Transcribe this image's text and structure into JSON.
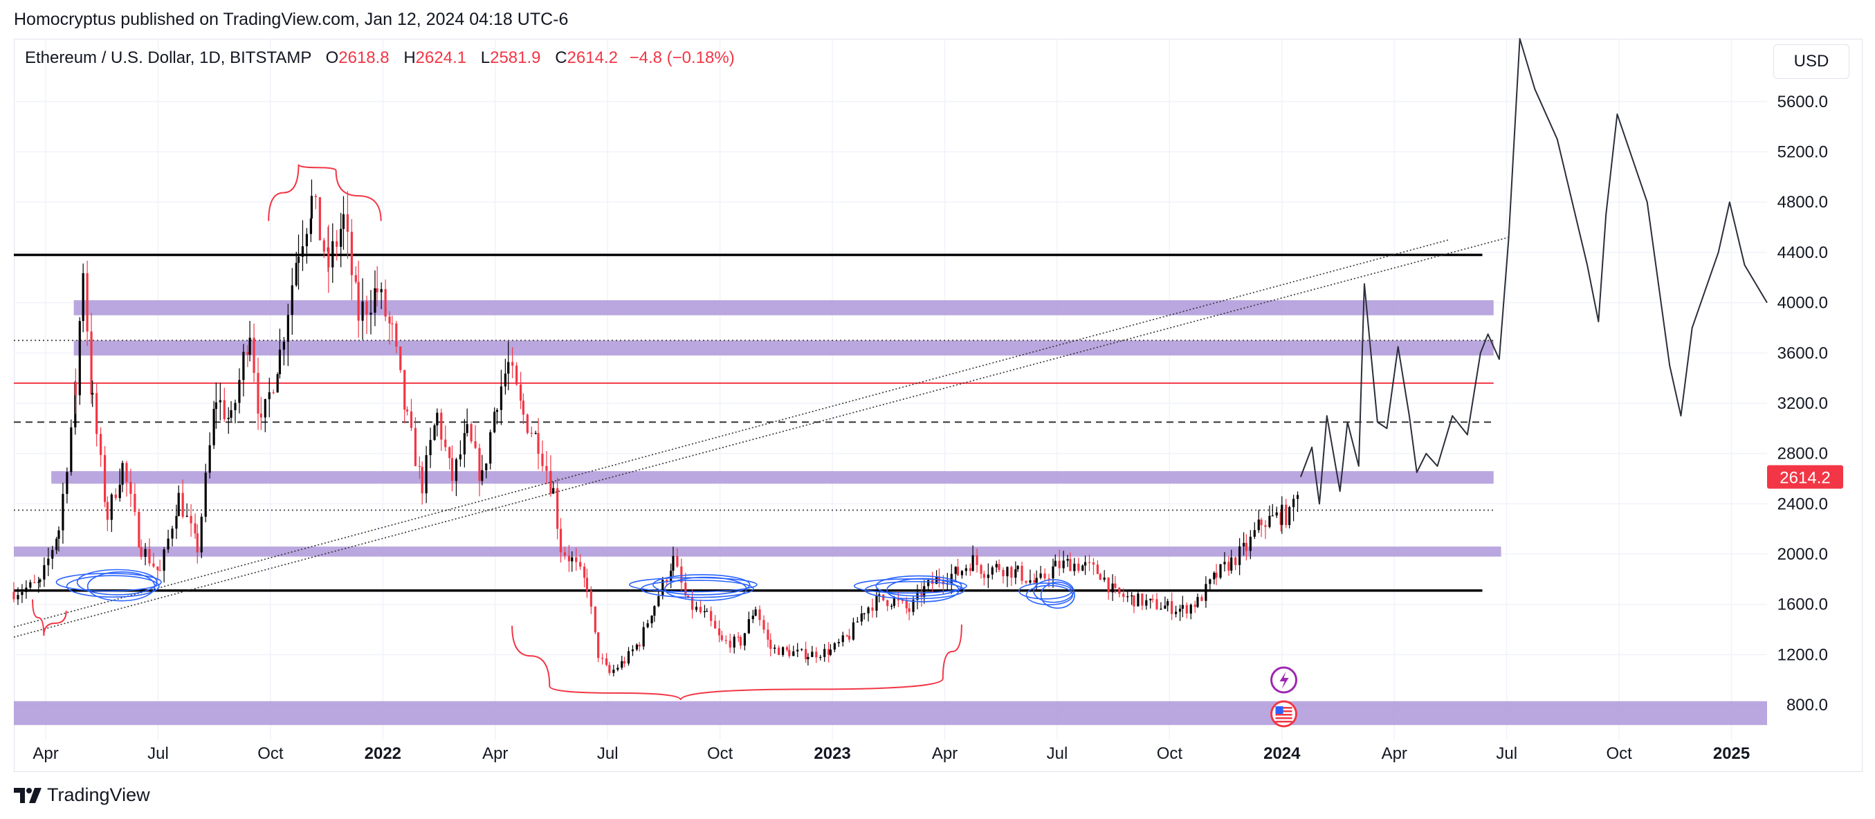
{
  "header": {
    "published": "Homocryptus published on TradingView.com, Jan 12, 2024 04:18 UTC-6"
  },
  "legend": {
    "symbol": "Ethereum / U.S. Dollar, 1D, BITSTAMP",
    "open_label": "O",
    "open": "2618.8",
    "high_label": "H",
    "high": "2624.1",
    "low_label": "L",
    "low": "2581.9",
    "close_label": "C",
    "close": "2614.2",
    "change": "−4.8 (−0.18%)"
  },
  "currency_button": "USD",
  "brand": "TradingView",
  "colors": {
    "up": "#000000",
    "down": "#f23645",
    "zone": "#b39ddb",
    "accent": "#f23645",
    "drawing_blue": "#2962ff"
  },
  "event_icons": [
    "lightning-icon",
    "us-flag-icon"
  ],
  "chart_data": {
    "type": "line",
    "title": "Ethereum / U.S. Dollar, 1D, BITSTAMP",
    "xlabel": "",
    "ylabel": "USD",
    "ylim": [
      520,
      6100
    ],
    "y_ticks": [
      800,
      1200,
      1600,
      2000,
      2400,
      2800,
      3200,
      3600,
      4000,
      4400,
      4800,
      5200,
      5600
    ],
    "y_tick_labels": [
      "800.0",
      "1200.0",
      "1600.0",
      "2000.0",
      "2400.0",
      "2800.0",
      "3200.0",
      "3600.0",
      "4000.0",
      "4400.0",
      "4800.0",
      "5200.0",
      "5600.0"
    ],
    "x_ticks": [
      {
        "label": "Apr",
        "t": 0.55,
        "bold": false
      },
      {
        "label": "Jul",
        "t": 3.55,
        "bold": false
      },
      {
        "label": "Oct",
        "t": 6.55,
        "bold": false
      },
      {
        "label": "2022",
        "t": 9.55,
        "bold": true
      },
      {
        "label": "Apr",
        "t": 12.55,
        "bold": false
      },
      {
        "label": "Jul",
        "t": 15.55,
        "bold": false
      },
      {
        "label": "Oct",
        "t": 18.55,
        "bold": false
      },
      {
        "label": "2023",
        "t": 21.55,
        "bold": true
      },
      {
        "label": "Apr",
        "t": 24.55,
        "bold": false
      },
      {
        "label": "Jul",
        "t": 27.55,
        "bold": false
      },
      {
        "label": "Oct",
        "t": 30.55,
        "bold": false
      },
      {
        "label": "2024",
        "t": 33.55,
        "bold": true
      },
      {
        "label": "Apr",
        "t": 36.55,
        "bold": false
      },
      {
        "label": "Jul",
        "t": 39.55,
        "bold": false
      },
      {
        "label": "Oct",
        "t": 42.55,
        "bold": false
      },
      {
        "label": "2025",
        "t": 45.55,
        "bold": true
      }
    ],
    "price_series": [
      [
        -0.3,
        1700
      ],
      [
        0.4,
        1760
      ],
      [
        0.9,
        2200
      ],
      [
        1.35,
        3300
      ],
      [
        1.55,
        4300
      ],
      [
        1.8,
        3200
      ],
      [
        2.2,
        2300
      ],
      [
        2.6,
        2700
      ],
      [
        3.1,
        2050
      ],
      [
        3.6,
        1850
      ],
      [
        4.1,
        2450
      ],
      [
        4.6,
        2050
      ],
      [
        5.1,
        3250
      ],
      [
        5.5,
        3050
      ],
      [
        6.0,
        3800
      ],
      [
        6.3,
        3000
      ],
      [
        6.8,
        3600
      ],
      [
        7.3,
        4450
      ],
      [
        7.65,
        4800
      ],
      [
        8.1,
        4300
      ],
      [
        8.5,
        4650
      ],
      [
        8.9,
        3900
      ],
      [
        9.4,
        4100
      ],
      [
        9.8,
        3750
      ],
      [
        10.2,
        3050
      ],
      [
        10.6,
        2550
      ],
      [
        11.0,
        3100
      ],
      [
        11.4,
        2600
      ],
      [
        11.8,
        2950
      ],
      [
        12.2,
        2600
      ],
      [
        12.6,
        3250
      ],
      [
        12.9,
        3500
      ],
      [
        13.3,
        3100
      ],
      [
        13.7,
        2900
      ],
      [
        14.1,
        2500
      ],
      [
        14.3,
        2050
      ],
      [
        14.6,
        1950
      ],
      [
        15.0,
        1750
      ],
      [
        15.3,
        1200
      ],
      [
        15.6,
        1050
      ],
      [
        16.0,
        1150
      ],
      [
        16.4,
        1300
      ],
      [
        16.8,
        1600
      ],
      [
        17.3,
        1950
      ],
      [
        17.7,
        1600
      ],
      [
        18.2,
        1500
      ],
      [
        18.6,
        1300
      ],
      [
        19.1,
        1300
      ],
      [
        19.5,
        1580
      ],
      [
        19.9,
        1250
      ],
      [
        20.4,
        1220
      ],
      [
        20.9,
        1200
      ],
      [
        21.5,
        1230
      ],
      [
        22.0,
        1350
      ],
      [
        22.4,
        1560
      ],
      [
        22.8,
        1640
      ],
      [
        23.2,
        1630
      ],
      [
        23.6,
        1550
      ],
      [
        24.0,
        1720
      ],
      [
        24.4,
        1810
      ],
      [
        24.9,
        1850
      ],
      [
        25.3,
        1950
      ],
      [
        25.6,
        1870
      ],
      [
        26.0,
        1900
      ],
      [
        26.5,
        1850
      ],
      [
        27.0,
        1760
      ],
      [
        27.5,
        1900
      ],
      [
        27.9,
        1930
      ],
      [
        28.3,
        1900
      ],
      [
        28.7,
        1850
      ],
      [
        29.1,
        1680
      ],
      [
        29.6,
        1640
      ],
      [
        30.1,
        1600
      ],
      [
        30.5,
        1580
      ],
      [
        30.9,
        1560
      ],
      [
        31.3,
        1620
      ],
      [
        31.8,
        1830
      ],
      [
        32.2,
        1940
      ],
      [
        32.6,
        2050
      ],
      [
        33.0,
        2250
      ],
      [
        33.3,
        2280
      ],
      [
        33.55,
        2314
      ],
      [
        33.75,
        2300
      ],
      [
        34.05,
        2614
      ]
    ],
    "forecast_path": [
      [
        34.05,
        2614
      ],
      [
        34.35,
        2850
      ],
      [
        34.55,
        2400
      ],
      [
        34.75,
        3100
      ],
      [
        35.1,
        2500
      ],
      [
        35.3,
        3050
      ],
      [
        35.6,
        2700
      ],
      [
        35.75,
        4150
      ],
      [
        36.1,
        3050
      ],
      [
        36.35,
        3000
      ],
      [
        36.65,
        3650
      ],
      [
        36.95,
        3100
      ],
      [
        37.15,
        2650
      ],
      [
        37.4,
        2800
      ],
      [
        37.7,
        2700
      ],
      [
        38.1,
        3100
      ],
      [
        38.5,
        2950
      ],
      [
        38.85,
        3600
      ],
      [
        39.05,
        3750
      ],
      [
        39.35,
        3550
      ],
      [
        39.6,
        4500
      ],
      [
        39.9,
        6100
      ],
      [
        40.3,
        5700
      ],
      [
        40.9,
        5300
      ],
      [
        41.7,
        4300
      ],
      [
        42.0,
        3850
      ],
      [
        42.2,
        4700
      ],
      [
        42.5,
        5500
      ],
      [
        43.3,
        4800
      ],
      [
        43.9,
        3500
      ],
      [
        44.2,
        3100
      ],
      [
        44.5,
        3800
      ],
      [
        45.2,
        4400
      ],
      [
        45.5,
        4800
      ],
      [
        45.9,
        4300
      ],
      [
        46.5,
        4000
      ]
    ],
    "zones": [
      {
        "lo": 640,
        "hi": 830,
        "x0": -0.3,
        "x1": 46.5
      },
      {
        "lo": 1980,
        "hi": 2060,
        "x0": -0.3,
        "x1": 39.4
      },
      {
        "lo": 2560,
        "hi": 2660,
        "x0": 0.7,
        "x1": 39.2
      },
      {
        "lo": 3580,
        "hi": 3700,
        "x0": 1.3,
        "x1": 39.2
      },
      {
        "lo": 3900,
        "hi": 4020,
        "x0": 1.3,
        "x1": 39.2
      }
    ],
    "levels": [
      {
        "price": 1710,
        "style": "solid",
        "color": "#000000",
        "x0": -0.3,
        "x1": 38.9
      },
      {
        "price": 2350,
        "style": "dotted",
        "color": "#555555",
        "x0": -0.3,
        "x1": 39.2
      },
      {
        "price": 3050,
        "style": "dashed",
        "color": "#333333",
        "x0": -0.3,
        "x1": 39.2
      },
      {
        "price": 3360,
        "style": "solid",
        "color": "#f23645",
        "x0": -0.3,
        "x1": 39.2
      },
      {
        "price": 3700,
        "style": "dotted",
        "color": "#555555",
        "x0": -0.3,
        "x1": 39.2
      },
      {
        "price": 4380,
        "style": "solid",
        "color": "#000000",
        "x0": -0.3,
        "x1": 38.9
      }
    ],
    "trendlines": [
      {
        "t1": -0.3,
        "p1": 1340,
        "t2": 39.6,
        "p2": 4520
      },
      {
        "t1": -0.3,
        "p1": 1420,
        "t2": 38.0,
        "p2": 4500
      }
    ],
    "arcs": [
      {
        "points": [
          [
            6.5,
            4650
          ],
          [
            7.3,
            5100
          ],
          [
            8.3,
            5050
          ],
          [
            9.5,
            4650
          ]
        ],
        "color": "#f23645"
      },
      {
        "points": [
          [
            13.0,
            1430
          ],
          [
            14.0,
            950
          ],
          [
            17.5,
            840
          ],
          [
            24.5,
            1010
          ],
          [
            25.0,
            1440
          ]
        ],
        "color": "#f23645"
      },
      {
        "points": [
          [
            0.2,
            1640
          ],
          [
            0.5,
            1350
          ],
          [
            1.1,
            1550
          ]
        ],
        "color": "#f23645"
      }
    ],
    "scribbles": [
      {
        "t": 2.4,
        "p": 1760,
        "w": 2.8,
        "h": 100
      },
      {
        "t": 18.0,
        "p": 1740,
        "w": 3.4,
        "h": 80
      },
      {
        "t": 23.8,
        "p": 1730,
        "w": 3.0,
        "h": 80
      },
      {
        "t": 27.4,
        "p": 1690,
        "w": 1.4,
        "h": 90
      }
    ],
    "last_price": "2614.2"
  }
}
